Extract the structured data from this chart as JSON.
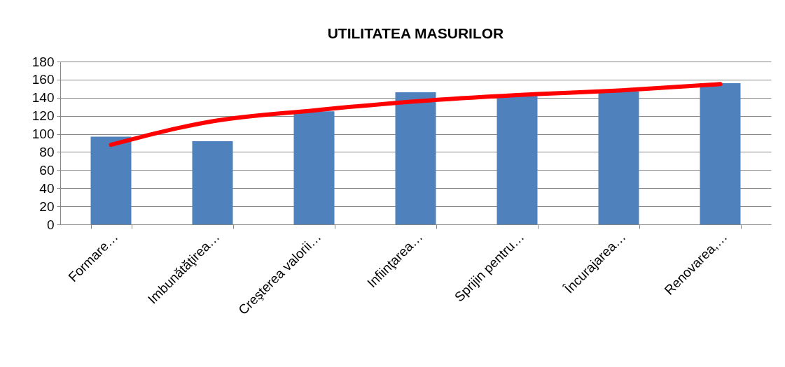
{
  "chart_data": {
    "type": "bar",
    "title": "UTILITATEA MASURILOR",
    "categories": [
      "Formare…",
      "Imbunătăţirea…",
      "Creşterea valorii…",
      "Infiinţarea…",
      "Sprijin pentru…",
      "Încurajarea…",
      "Renovarea,…"
    ],
    "series": [
      {
        "color": "#4f81bd",
        "values": [
          97,
          92,
          125,
          146,
          142,
          147,
          156
        ]
      },
      {
        "type": "line",
        "color": "#ff0000",
        "values": [
          88,
          114,
          126,
          136,
          143,
          148,
          155
        ]
      }
    ],
    "ylim": [
      0,
      180
    ],
    "yticks": [
      0,
      20,
      40,
      60,
      80,
      100,
      120,
      140,
      160,
      180
    ],
    "grid": "y",
    "marker": "none",
    "line_style": "solid"
  }
}
